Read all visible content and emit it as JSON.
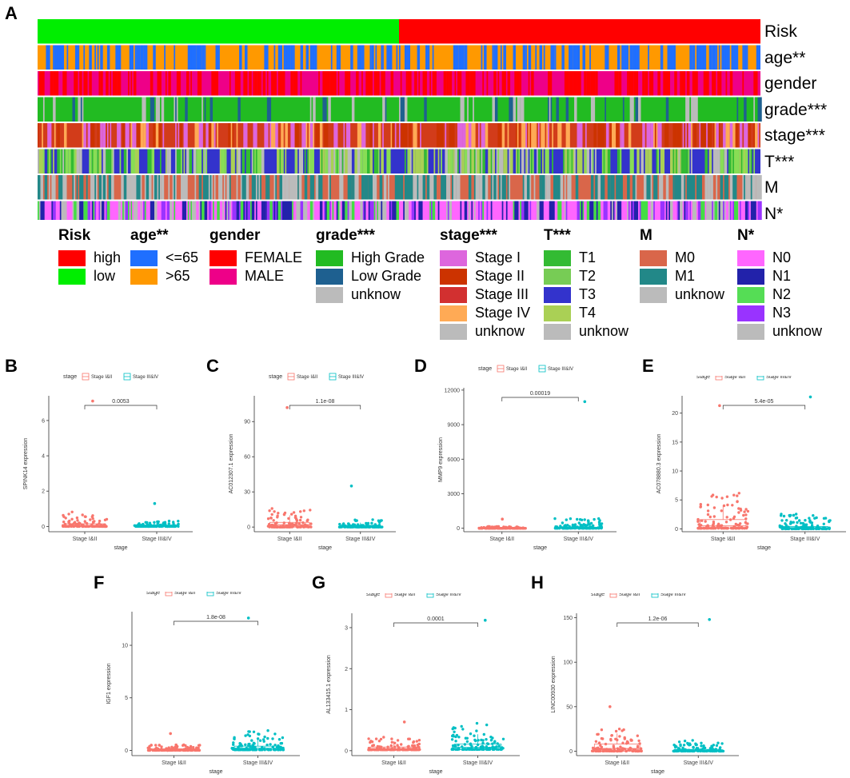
{
  "panel_a": {
    "letter": "A",
    "tracks": [
      {
        "label": "Risk",
        "colors": [
          "#00ee00",
          "#ff0000"
        ],
        "pattern": "split",
        "split_fraction": 0.5
      },
      {
        "label": "age**",
        "colors": [
          "#ff9900",
          "#1f6fff"
        ],
        "pattern": "random",
        "weight": 0.28
      },
      {
        "label": "gender",
        "colors": [
          "#ee0088",
          "#ff0000"
        ],
        "pattern": "random",
        "weight": 0.3
      },
      {
        "label": "grade***",
        "colors": [
          "#22bb22",
          "#1e6090",
          "#bbbbbb"
        ],
        "pattern": "random",
        "weight": 0.1
      },
      {
        "label": "stage***",
        "colors": [
          "#d23c1a",
          "#cc3300",
          "#ffaa55",
          "#dd66dd"
        ],
        "pattern": "random",
        "weight": 0.35
      },
      {
        "label": "T***",
        "colors": [
          "#3333cc",
          "#33bb33",
          "#88dd55",
          "#aad055",
          "#bbbbbb"
        ],
        "pattern": "random",
        "weight": 0.45
      },
      {
        "label": "M",
        "colors": [
          "#d9664a",
          "#bbbbbb",
          "#228888"
        ],
        "pattern": "random",
        "weight": 0.4
      },
      {
        "label": "N*",
        "colors": [
          "#ff66ff",
          "#bbbbbb",
          "#2222aa",
          "#44dd44",
          "#9933ff"
        ],
        "pattern": "random",
        "weight": 0.4
      }
    ],
    "legend": [
      {
        "title": "Risk",
        "items": [
          {
            "label": "high",
            "color": "#ff0000"
          },
          {
            "label": "low",
            "color": "#00ee00"
          }
        ]
      },
      {
        "title": "age**",
        "items": [
          {
            "label": "<=65",
            "color": "#1f6fff"
          },
          {
            "label": ">65",
            "color": "#ff9900"
          }
        ]
      },
      {
        "title": "gender",
        "items": [
          {
            "label": "FEMALE",
            "color": "#ff0000"
          },
          {
            "label": "MALE",
            "color": "#ee0088"
          }
        ]
      },
      {
        "title": "grade***",
        "items": [
          {
            "label": "High Grade",
            "color": "#22bb22"
          },
          {
            "label": "Low Grade",
            "color": "#1e6090"
          },
          {
            "label": "unknow",
            "color": "#bbbbbb"
          }
        ]
      },
      {
        "title": "stage***",
        "items": [
          {
            "label": "Stage I",
            "color": "#dd66dd"
          },
          {
            "label": "Stage II",
            "color": "#cc3300"
          },
          {
            "label": "Stage III",
            "color": "#d23030"
          },
          {
            "label": "Stage IV",
            "color": "#ffaa55"
          },
          {
            "label": "unknow",
            "color": "#bbbbbb"
          }
        ]
      },
      {
        "title": "T***",
        "items": [
          {
            "label": "T1",
            "color": "#33bb33"
          },
          {
            "label": "T2",
            "color": "#77cc55"
          },
          {
            "label": "T3",
            "color": "#3333cc"
          },
          {
            "label": "T4",
            "color": "#aad055"
          },
          {
            "label": "unknow",
            "color": "#bbbbbb"
          }
        ]
      },
      {
        "title": "M",
        "items": [
          {
            "label": "M0",
            "color": "#d9664a"
          },
          {
            "label": "M1",
            "color": "#228888"
          },
          {
            "label": "unknow",
            "color": "#bbbbbb"
          }
        ]
      },
      {
        "title": "N*",
        "items": [
          {
            "label": "N0",
            "color": "#ff66ff"
          },
          {
            "label": "N1",
            "color": "#2222aa"
          },
          {
            "label": "N2",
            "color": "#55dd55"
          },
          {
            "label": "N3",
            "color": "#9933ff"
          },
          {
            "label": "unknow",
            "color": "#bbbbbb"
          }
        ]
      }
    ]
  },
  "chart_data": [
    {
      "type": "heatmap",
      "title": "",
      "rows": [
        "Risk",
        "age**",
        "gender",
        "grade***",
        "stage***",
        "T***",
        "M",
        "N*"
      ],
      "row_categories": {
        "Risk": [
          "high",
          "low"
        ],
        "age**": [
          "<=65",
          ">65"
        ],
        "gender": [
          "FEMALE",
          "MALE"
        ],
        "grade***": [
          "High Grade",
          "Low Grade",
          "unknow"
        ],
        "stage***": [
          "Stage I",
          "Stage II",
          "Stage III",
          "Stage IV",
          "unknow"
        ],
        "T***": [
          "T1",
          "T2",
          "T3",
          "T4",
          "unknow"
        ],
        "M": [
          "M0",
          "M1",
          "unknow"
        ],
        "N*": [
          "N0",
          "N1",
          "N2",
          "N3",
          "unknow"
        ]
      },
      "note": "samples ordered by risk score; left half low risk, right half high risk"
    },
    {
      "panel": "B",
      "type": "box-jitter",
      "xlabel": "stage",
      "ylabel": "SPINK14 expression",
      "legend_title": "stage",
      "categories": [
        "Stage I&II",
        "Stage III&IV"
      ],
      "yticks": [
        0,
        2,
        4,
        6
      ],
      "ylim": [
        -0.3,
        7.4
      ],
      "pvalue": "0.0053",
      "q1": [
        0.0,
        0.0
      ],
      "median": [
        0.05,
        0.02
      ],
      "q3": [
        0.15,
        0.08
      ],
      "max_points": [
        7.1,
        1.3
      ]
    },
    {
      "panel": "C",
      "type": "box-jitter",
      "xlabel": "stage",
      "ylabel": "AC012307.1 expression",
      "legend_title": "stage",
      "categories": [
        "Stage I&II",
        "Stage III&IV"
      ],
      "yticks": [
        0,
        30,
        60,
        90
      ],
      "ylim": [
        -4,
        112
      ],
      "pvalue": "1.1e-08",
      "q1": [
        0,
        0
      ],
      "median": [
        2,
        0.3
      ],
      "q3": [
        4,
        1.5
      ],
      "max_points": [
        102,
        35
      ]
    },
    {
      "panel": "D",
      "type": "box-jitter",
      "xlabel": "stage",
      "ylabel": "MMP9 expression",
      "legend_title": "stage",
      "categories": [
        "Stage I&II",
        "Stage III&IV"
      ],
      "yticks": [
        0,
        3000,
        6000,
        9000,
        12000
      ],
      "ylim": [
        -300,
        12200
      ],
      "pvalue": "0.00019",
      "q1": [
        0,
        0
      ],
      "median": [
        10,
        20
      ],
      "q3": [
        40,
        80
      ],
      "max_points": [
        800,
        11000
      ]
    },
    {
      "panel": "E",
      "type": "box-jitter",
      "xlabel": "stage",
      "ylabel": "AC078880.3 expression",
      "legend_title": "stage",
      "categories": [
        "Stage I&II",
        "Stage III&IV"
      ],
      "yticks": [
        0,
        5,
        10,
        15,
        20
      ],
      "ylim": [
        -0.5,
        23
      ],
      "pvalue": "5.4e-05",
      "q1": [
        0.1,
        0.0
      ],
      "median": [
        0.5,
        0.2
      ],
      "q3": [
        1.6,
        0.4
      ],
      "max_points": [
        21.3,
        22.8
      ]
    },
    {
      "panel": "F",
      "type": "box-jitter",
      "xlabel": "stage",
      "ylabel": "IGF1 expression",
      "legend_title": "stage",
      "categories": [
        "Stage I&II",
        "Stage III&IV"
      ],
      "yticks": [
        0,
        5,
        10
      ],
      "ylim": [
        -0.5,
        13.2
      ],
      "pvalue": "1.8e-08",
      "q1": [
        0,
        0.05
      ],
      "median": [
        0.05,
        0.2
      ],
      "q3": [
        0.15,
        0.4
      ],
      "max_points": [
        1.6,
        12.6
      ]
    },
    {
      "panel": "G",
      "type": "box-jitter",
      "xlabel": "stage",
      "ylabel": "AL133415.1 expression",
      "legend_title": "stage",
      "categories": [
        "Stage I&II",
        "Stage III&IV"
      ],
      "yticks": [
        0,
        1,
        2,
        3
      ],
      "ylim": [
        -0.12,
        3.35
      ],
      "pvalue": "0.0001",
      "q1": [
        0.02,
        0.03
      ],
      "median": [
        0.05,
        0.08
      ],
      "q3": [
        0.09,
        0.16
      ],
      "max_points": [
        0.7,
        3.18
      ]
    },
    {
      "panel": "H",
      "type": "box-jitter",
      "xlabel": "stage",
      "ylabel": "LINC00930 expression",
      "legend_title": "stage",
      "categories": [
        "Stage I&II",
        "Stage III&IV"
      ],
      "yticks": [
        0,
        50,
        100,
        150
      ],
      "ylim": [
        -5,
        155
      ],
      "pvalue": "1.2e-06",
      "q1": [
        0,
        0
      ],
      "median": [
        3,
        1
      ],
      "q3": [
        8,
        2
      ],
      "max_points": [
        50,
        148
      ]
    }
  ],
  "box_legend": {
    "title": "stage",
    "items": [
      "Stage I&II",
      "Stage III&IV"
    ],
    "colors": [
      "#f8766d",
      "#00bfc4"
    ]
  }
}
